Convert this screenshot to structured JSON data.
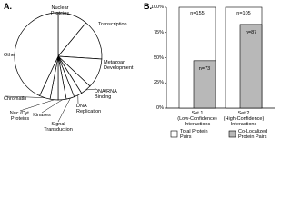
{
  "chart_data": [
    {
      "type": "pie",
      "panel_label": "A.",
      "categories": [
        "Nuclear Proteins",
        "Transcription",
        "Metazoan\nDevelopment",
        "DNA/RNA\nBinding",
        "DNA\nReplication",
        "Signal\nTransduction",
        "Kinases",
        "Nuc./Cyt.\nProteins",
        "Chromatin",
        "Other"
      ],
      "values": [
        11,
        15,
        11,
        4,
        3,
        3,
        3,
        3,
        4,
        43
      ],
      "color": "#ffffff"
    },
    {
      "type": "bar",
      "panel_label": "B.",
      "categories": [
        "Set 1\n(Low-Confidence)\nInteractions",
        "Set 2\n(High-Confidence)\nInteractions"
      ],
      "series": [
        {
          "name": "Total Protein\nPairs",
          "color": "#ffffff",
          "values": [
            100,
            100
          ],
          "annotations": [
            "n=155",
            "n=105"
          ]
        },
        {
          "name": "Co-Localized\nProtein Pairs",
          "color": "#b8b8b8",
          "values": [
            47,
            83
          ],
          "annotations": [
            "n=73",
            "n=87"
          ]
        }
      ],
      "ylim": [
        0,
        100
      ],
      "yticks": [
        {
          "value": 0,
          "label": "0%"
        },
        {
          "value": 25,
          "label": "25%"
        },
        {
          "value": 50,
          "label": "50%"
        },
        {
          "value": 75,
          "label": "75%"
        },
        {
          "value": 100,
          "label": "100%"
        }
      ],
      "legend": "bottom"
    }
  ]
}
